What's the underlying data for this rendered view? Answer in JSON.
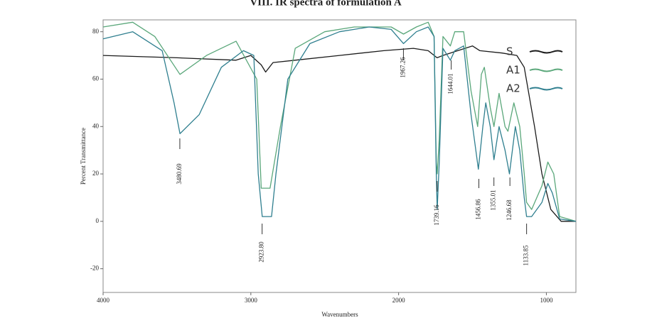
{
  "chart_data": {
    "type": "line",
    "title": "VIII.     IR spectra of formulation A",
    "xlabel": "Wavenumbers",
    "ylabel": "Percent Transmittance",
    "xlim": [
      4000,
      800
    ],
    "ylim": [
      -30,
      85
    ],
    "xticks": [
      4000,
      3000,
      2000,
      1000
    ],
    "yticks": [
      -20,
      0,
      20,
      40,
      60,
      80
    ],
    "series": [
      {
        "name": "S",
        "color": "#1a1a1a",
        "x": [
          4000,
          3500,
          3100,
          3000,
          2930,
          2900,
          2850,
          2700,
          2400,
          2100,
          1900,
          1800,
          1740,
          1700,
          1600,
          1500,
          1450,
          1300,
          1200,
          1150,
          1080,
          1030,
          970,
          900,
          800
        ],
        "values": [
          70,
          69,
          68,
          70,
          66,
          63,
          67,
          68,
          70,
          72,
          73,
          72,
          69,
          70,
          72,
          74,
          72,
          71,
          70,
          65,
          40,
          20,
          5,
          0,
          0
        ]
      },
      {
        "name": "A1",
        "color": "#5aa77a",
        "x": [
          4000,
          3800,
          3650,
          3480,
          3300,
          3100,
          2960,
          2930,
          2870,
          2800,
          2700,
          2500,
          2300,
          2050,
          1967,
          1880,
          1800,
          1760,
          1745,
          1739,
          1725,
          1700,
          1650,
          1620,
          1560,
          1510,
          1465,
          1440,
          1420,
          1380,
          1355,
          1320,
          1280,
          1260,
          1220,
          1180,
          1150,
          1134,
          1100,
          1030,
          990,
          950,
          910,
          800
        ],
        "values": [
          82,
          84,
          78,
          62,
          70,
          76,
          60,
          14,
          14,
          40,
          73,
          80,
          82,
          82,
          79,
          82,
          84,
          78,
          25,
          20,
          35,
          78,
          74,
          80,
          80,
          55,
          40,
          62,
          65,
          48,
          40,
          54,
          40,
          38,
          50,
          40,
          20,
          8,
          5,
          15,
          25,
          20,
          2,
          0
        ]
      },
      {
        "name": "A2",
        "color": "#2f7f8f",
        "x": [
          4000,
          3800,
          3600,
          3520,
          3480,
          3350,
          3200,
          3050,
          2980,
          2950,
          2923,
          2860,
          2830,
          2750,
          2600,
          2400,
          2200,
          2050,
          1967,
          1880,
          1800,
          1760,
          1745,
          1739,
          1725,
          1700,
          1650,
          1620,
          1560,
          1510,
          1460,
          1430,
          1410,
          1380,
          1355,
          1320,
          1280,
          1250,
          1210,
          1180,
          1150,
          1134,
          1100,
          1030,
          990,
          960,
          910,
          800
        ],
        "values": [
          77,
          80,
          72,
          50,
          37,
          45,
          65,
          72,
          70,
          20,
          2,
          2,
          20,
          60,
          75,
          80,
          82,
          81,
          75,
          80,
          82,
          78,
          20,
          5,
          25,
          73,
          68,
          72,
          74,
          45,
          22,
          40,
          50,
          40,
          26,
          40,
          30,
          20,
          40,
          30,
          10,
          2,
          2,
          8,
          16,
          12,
          1,
          0
        ]
      }
    ],
    "annotations": [
      {
        "value": 3480.69,
        "label": "3480.69"
      },
      {
        "value": 2923.8,
        "label": "2923.80"
      },
      {
        "value": 1967.26,
        "label": "1967.26"
      },
      {
        "value": 1739.16,
        "label": "1739.16"
      },
      {
        "value": 1644.01,
        "label": "1644.01"
      },
      {
        "value": 1456.86,
        "label": "1456.86"
      },
      {
        "value": 1355.01,
        "label": "1355.01"
      },
      {
        "value": 1246.68,
        "label": "1246.68"
      },
      {
        "value": 1133.85,
        "label": "1133.85"
      }
    ]
  }
}
